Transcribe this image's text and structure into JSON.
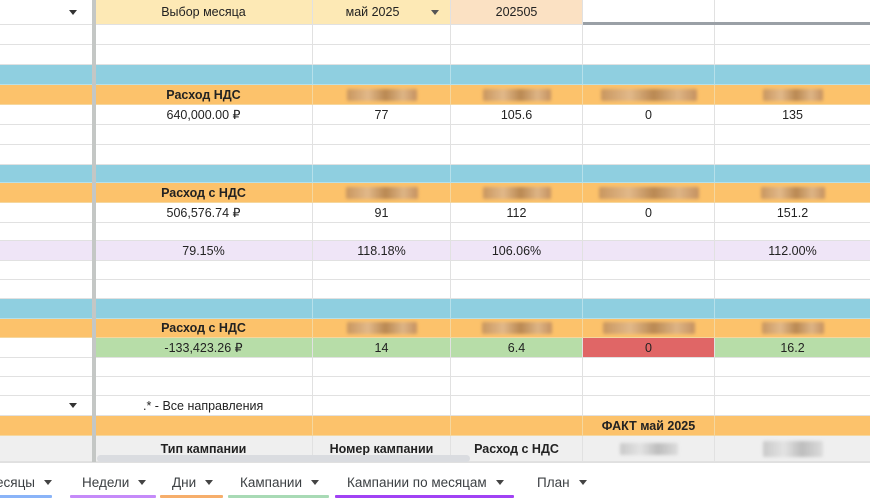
{
  "colors": {
    "blue_band": "#8fcfe0",
    "orange_header": "#fcc26b",
    "light_yellow": "#fde9b5",
    "light_orange": "#fbe1c3",
    "lavender": "#efe5f7",
    "green_cell": "#b7dda8",
    "red_cell": "#e06666",
    "gray_header": "#efefef"
  },
  "month_selector": {
    "label": "Выбор месяца",
    "value": "май 2025",
    "code": "202505"
  },
  "block1": {
    "header": "Расход НДС",
    "values": [
      "640,000.00 ₽",
      "77",
      "105.6",
      "0",
      "135"
    ]
  },
  "block2": {
    "header": "Расход с НДС",
    "values": [
      "506,576.74 ₽",
      "91",
      "112",
      "0",
      "151.2"
    ],
    "percents": [
      "79.15%",
      "118.18%",
      "106.06%",
      "",
      "112.00%"
    ]
  },
  "block3": {
    "header": "Расход с НДС",
    "values": [
      "-133,423.26 ₽",
      "14",
      "6.4",
      "0",
      "16.2"
    ]
  },
  "filter": {
    "note": ".* - Все направления",
    "fact_title": "ФАКТ май 2025"
  },
  "table_header": {
    "col1": "Тип кампании",
    "col2": "Номер кампании",
    "col3": "Расход с НДС"
  },
  "tabs": [
    {
      "label": "есяцы",
      "color": "#8ab4f8"
    },
    {
      "label": "Недели",
      "color": "#c58af9"
    },
    {
      "label": "Дни",
      "color": "#f6ae6b"
    },
    {
      "label": "Кампании",
      "color": "#a8dab5"
    },
    {
      "label": "Кампании по месяцам",
      "color": "#a142f4"
    },
    {
      "label": "План",
      "color": ""
    }
  ]
}
